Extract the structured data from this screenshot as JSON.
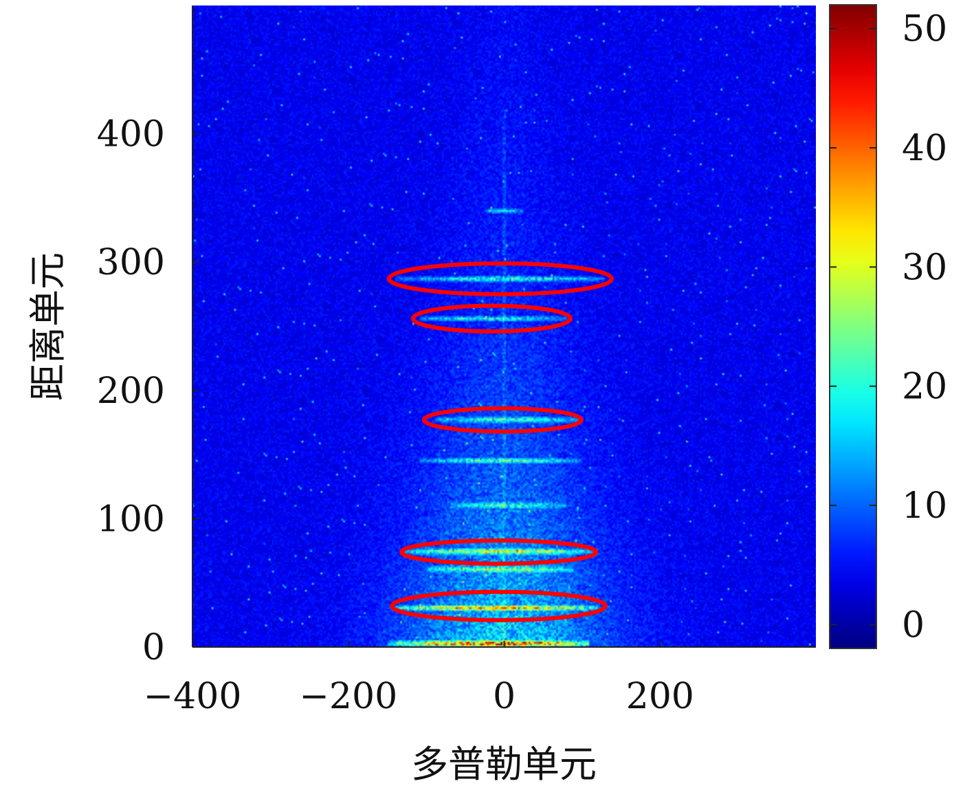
{
  "chart_data": {
    "type": "heatmap",
    "title": "",
    "xlabel": "多普勒单元",
    "ylabel": "距离单元",
    "xlim": [
      -400,
      400
    ],
    "ylim": [
      0,
      500
    ],
    "x_ticks": [
      {
        "value": -400,
        "label": "−400"
      },
      {
        "value": -200,
        "label": "−200"
      },
      {
        "value": 0,
        "label": "0"
      },
      {
        "value": 200,
        "label": "200"
      }
    ],
    "y_ticks": [
      {
        "value": 0,
        "label": "0"
      },
      {
        "value": 100,
        "label": "100"
      },
      {
        "value": 200,
        "label": "200"
      },
      {
        "value": 300,
        "label": "300"
      },
      {
        "value": 400,
        "label": "400"
      }
    ],
    "colorbar": {
      "colormap": "jet",
      "range": [
        -2,
        52
      ],
      "ticks": [
        {
          "value": 0,
          "label": "0"
        },
        {
          "value": 10,
          "label": "10"
        },
        {
          "value": 20,
          "label": "20"
        },
        {
          "value": 30,
          "label": "30"
        },
        {
          "value": 40,
          "label": "40"
        },
        {
          "value": 50,
          "label": "50"
        }
      ]
    },
    "grid": false,
    "background_level": 4,
    "highlighted_regions": [
      {
        "doppler_center": -5,
        "range_center": 287,
        "doppler_half_width": 143,
        "range_half_width": 12
      },
      {
        "doppler_center": -16,
        "range_center": 256,
        "doppler_half_width": 101,
        "range_half_width": 10
      },
      {
        "doppler_center": -2,
        "range_center": 177,
        "doppler_half_width": 101,
        "range_half_width": 9
      },
      {
        "doppler_center": -7,
        "range_center": 74,
        "doppler_half_width": 125,
        "range_half_width": 9
      },
      {
        "doppler_center": -7,
        "range_center": 32,
        "doppler_half_width": 137,
        "range_half_width": 11
      }
    ],
    "highlight_color": "#ff0000",
    "strong_returns": [
      {
        "range": 2,
        "doppler_min": -150,
        "doppler_max": 110,
        "level": 38
      },
      {
        "range": 30,
        "doppler_min": -140,
        "doppler_max": 120,
        "level": 30
      },
      {
        "range": 60,
        "doppler_min": -100,
        "doppler_max": 90,
        "level": 18
      },
      {
        "range": 74,
        "doppler_min": -130,
        "doppler_max": 120,
        "level": 24
      },
      {
        "range": 110,
        "doppler_min": -70,
        "doppler_max": 80,
        "level": 14
      },
      {
        "range": 145,
        "doppler_min": -110,
        "doppler_max": 100,
        "level": 16
      },
      {
        "range": 177,
        "doppler_min": -90,
        "doppler_max": 100,
        "level": 18
      },
      {
        "range": 256,
        "doppler_min": -110,
        "doppler_max": 80,
        "level": 16
      },
      {
        "range": 287,
        "doppler_min": -140,
        "doppler_max": 130,
        "level": 18
      },
      {
        "range": 340,
        "doppler_min": -25,
        "doppler_max": 25,
        "level": 13
      }
    ]
  }
}
